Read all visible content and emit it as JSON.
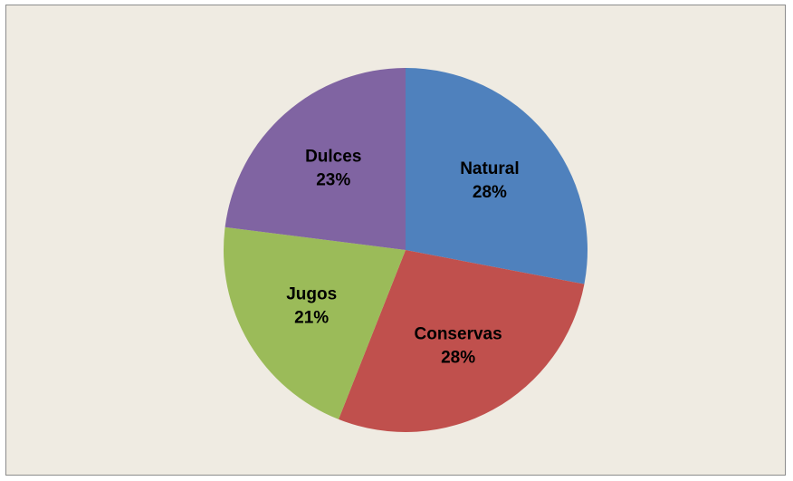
{
  "chart_data": {
    "type": "pie",
    "title": "",
    "categories": [
      "Natural",
      "Conservas",
      "Jugos",
      "Dulces"
    ],
    "values": [
      28,
      28,
      21,
      23
    ],
    "value_unit": "%",
    "colors": [
      "#4f81bd",
      "#c0504d",
      "#9bbb59",
      "#8064a2"
    ],
    "data_labels": [
      {
        "name": "Natural",
        "percent": "28%"
      },
      {
        "name": "Conservas",
        "percent": "28%"
      },
      {
        "name": "Jugos",
        "percent": "21%"
      },
      {
        "name": "Dulces",
        "percent": "23%"
      }
    ],
    "legend": "none",
    "start_angle": "12 o'clock",
    "direction": "clockwise",
    "background": "#efebe2"
  }
}
